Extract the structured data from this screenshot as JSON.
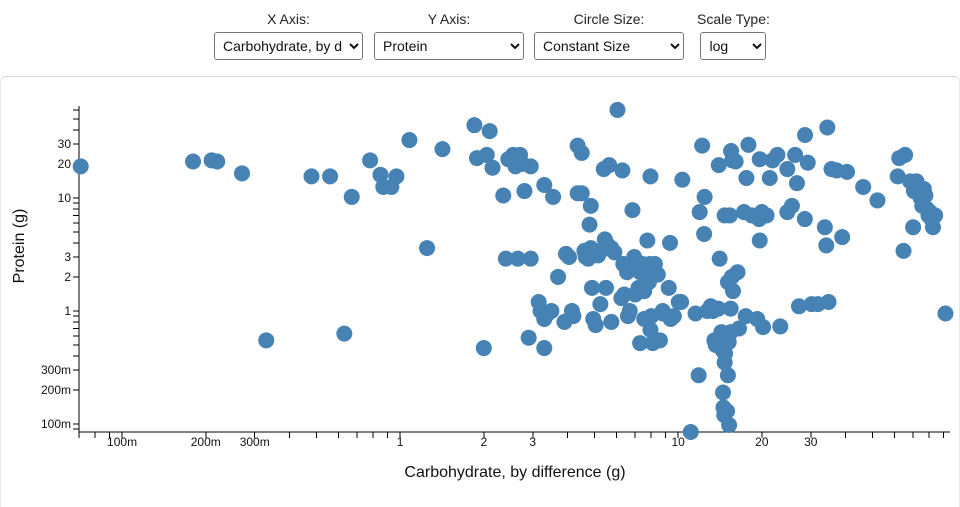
{
  "controls": {
    "x_axis": {
      "label": "X Axis:",
      "selected": "Carbohydrate, by difference"
    },
    "y_axis": {
      "label": "Y Axis:",
      "selected": "Protein"
    },
    "circle_size": {
      "label": "Circle Size:",
      "selected": "Constant Size"
    },
    "scale_type": {
      "label": "Scale Type:",
      "selected": "log"
    }
  },
  "chart_data": {
    "type": "scatter",
    "title": "",
    "xlabel": "Carbohydrate, by difference (g)",
    "ylabel": "Protein (g)",
    "xscale": "log",
    "yscale": "log",
    "xlim": [
      0.07,
      95
    ],
    "ylim": [
      0.085,
      65
    ],
    "x_tick_labels": [
      {
        "value": 0.1,
        "label": "100m"
      },
      {
        "value": 0.2,
        "label": "200m"
      },
      {
        "value": 0.3,
        "label": "300m"
      },
      {
        "value": 1,
        "label": "1"
      },
      {
        "value": 2,
        "label": "2"
      },
      {
        "value": 3,
        "label": "3"
      },
      {
        "value": 10,
        "label": "10"
      },
      {
        "value": 20,
        "label": "20"
      },
      {
        "value": 30,
        "label": "30"
      }
    ],
    "y_tick_labels": [
      {
        "value": 0.1,
        "label": "100m"
      },
      {
        "value": 0.2,
        "label": "200m"
      },
      {
        "value": 0.3,
        "label": "300m"
      },
      {
        "value": 1,
        "label": "1"
      },
      {
        "value": 2,
        "label": "2"
      },
      {
        "value": 3,
        "label": "3"
      },
      {
        "value": 10,
        "label": "10"
      },
      {
        "value": 20,
        "label": "20"
      },
      {
        "value": 30,
        "label": "30"
      }
    ],
    "color": "#4682b4",
    "points": [
      [
        0.071,
        19
      ],
      [
        0.18,
        21
      ],
      [
        0.21,
        21.5
      ],
      [
        0.22,
        21
      ],
      [
        0.27,
        16.5
      ],
      [
        0.33,
        0.55
      ],
      [
        0.48,
        15.5
      ],
      [
        0.56,
        15.5
      ],
      [
        0.63,
        0.63
      ],
      [
        0.67,
        10.2
      ],
      [
        0.78,
        21.5
      ],
      [
        0.85,
        16
      ],
      [
        0.87,
        12.5
      ],
      [
        0.93,
        12.5
      ],
      [
        0.97,
        15.5
      ],
      [
        1.08,
        32.5
      ],
      [
        1.25,
        3.6
      ],
      [
        1.42,
        27
      ],
      [
        1.85,
        44
      ],
      [
        1.89,
        22.5
      ],
      [
        2.0,
        0.47
      ],
      [
        2.1,
        39
      ],
      [
        2.05,
        24
      ],
      [
        2.15,
        18.5
      ],
      [
        2.35,
        10.5
      ],
      [
        2.45,
        22
      ],
      [
        2.55,
        24
      ],
      [
        2.7,
        24
      ],
      [
        2.6,
        19
      ],
      [
        2.75,
        20
      ],
      [
        2.8,
        11.5
      ],
      [
        2.95,
        19
      ],
      [
        2.4,
        2.9
      ],
      [
        2.65,
        2.9
      ],
      [
        2.95,
        2.9
      ],
      [
        2.9,
        0.58
      ],
      [
        3.15,
        1.2
      ],
      [
        3.3,
        13
      ],
      [
        3.55,
        10.2
      ],
      [
        3.3,
        0.47
      ],
      [
        3.2,
        1.0
      ],
      [
        3.3,
        0.85
      ],
      [
        3.4,
        0.95
      ],
      [
        3.5,
        1.0
      ],
      [
        3.7,
        2.0
      ],
      [
        3.9,
        0.8
      ],
      [
        3.95,
        3.2
      ],
      [
        4.05,
        3.0
      ],
      [
        4.15,
        1.0
      ],
      [
        4.2,
        0.9
      ],
      [
        4.35,
        11
      ],
      [
        4.35,
        29
      ],
      [
        4.5,
        25
      ],
      [
        4.5,
        11
      ],
      [
        4.6,
        3.4
      ],
      [
        4.65,
        3.0
      ],
      [
        4.75,
        2.9
      ],
      [
        4.8,
        5.8
      ],
      [
        4.85,
        8.5
      ],
      [
        4.85,
        3.6
      ],
      [
        4.9,
        1.6
      ],
      [
        4.95,
        0.85
      ],
      [
        5.05,
        0.75
      ],
      [
        5.15,
        3.1
      ],
      [
        5.25,
        1.15
      ],
      [
        5.35,
        3.5
      ],
      [
        5.45,
        4.3
      ],
      [
        5.5,
        1.6
      ],
      [
        5.4,
        18
      ],
      [
        5.65,
        19.5
      ],
      [
        5.75,
        3.6
      ],
      [
        5.6,
        3.8
      ],
      [
        5.9,
        3.3
      ],
      [
        5.75,
        0.8
      ],
      [
        6.05,
        60
      ],
      [
        6.25,
        1.3
      ],
      [
        6.4,
        1.4
      ],
      [
        6.35,
        2.6
      ],
      [
        6.55,
        2.2
      ],
      [
        6.3,
        17.5
      ],
      [
        6.6,
        0.9
      ],
      [
        6.7,
        1.0
      ],
      [
        6.85,
        7.8
      ],
      [
        6.95,
        2.6
      ],
      [
        6.95,
        3.0
      ],
      [
        7.2,
        1.6
      ],
      [
        7.0,
        1.4
      ],
      [
        7.3,
        2.2
      ],
      [
        7.45,
        2.6
      ],
      [
        7.3,
        0.52
      ],
      [
        7.55,
        1.5
      ],
      [
        7.6,
        2.0
      ],
      [
        7.55,
        0.85
      ],
      [
        7.85,
        1.8
      ],
      [
        7.9,
        2.6
      ],
      [
        7.75,
        4.2
      ],
      [
        7.95,
        15.5
      ],
      [
        7.95,
        0.68
      ],
      [
        8.1,
        0.52
      ],
      [
        8.0,
        0.9
      ],
      [
        8.25,
        2.6
      ],
      [
        8.45,
        2.1
      ],
      [
        8.6,
        0.55
      ],
      [
        8.8,
        1.0
      ],
      [
        8.8,
        0.95
      ],
      [
        9.25,
        1.6
      ],
      [
        9.35,
        4.0
      ],
      [
        9.4,
        0.85
      ],
      [
        9.65,
        0.9
      ],
      [
        10.05,
        1.2
      ],
      [
        10.25,
        1.2
      ],
      [
        10.35,
        14.5
      ],
      [
        11.1,
        0.085
      ],
      [
        11.55,
        0.95
      ],
      [
        11.95,
        7.5
      ],
      [
        11.85,
        0.27
      ],
      [
        12.2,
        29
      ],
      [
        12.45,
        10.2
      ],
      [
        12.4,
        4.8
      ],
      [
        12.75,
        1.0
      ],
      [
        13.1,
        1.1
      ],
      [
        13.35,
        1.0
      ],
      [
        13.5,
        0.55
      ],
      [
        13.65,
        0.5
      ],
      [
        13.95,
        1.05
      ],
      [
        14.0,
        19.5
      ],
      [
        14.1,
        2.9
      ],
      [
        14.3,
        0.65
      ],
      [
        14.5,
        0.19
      ],
      [
        14.45,
        0.45
      ],
      [
        14.7,
        7.0
      ],
      [
        14.65,
        0.12
      ],
      [
        14.55,
        0.14
      ],
      [
        14.7,
        0.35
      ],
      [
        14.75,
        0.42
      ],
      [
        15.0,
        0.13
      ],
      [
        15.2,
        0.53
      ],
      [
        15.1,
        0.27
      ],
      [
        15.35,
        7.0
      ],
      [
        15.1,
        1.8
      ],
      [
        15.6,
        2.0
      ],
      [
        15.45,
        0.65
      ],
      [
        15.25,
        0.098
      ],
      [
        15.5,
        26
      ],
      [
        15.65,
        21.5
      ],
      [
        15.45,
        1.05
      ],
      [
        15.75,
        1.5
      ],
      [
        16.1,
        21
      ],
      [
        16.35,
        2.2
      ],
      [
        16.55,
        0.7
      ],
      [
        17.25,
        7.5
      ],
      [
        17.6,
        15
      ],
      [
        17.9,
        29.5
      ],
      [
        17.5,
        0.9
      ],
      [
        18.4,
        7.0
      ],
      [
        19.25,
        0.85
      ],
      [
        19.65,
        22
      ],
      [
        19.55,
        6.5
      ],
      [
        19.65,
        4.2
      ],
      [
        20.0,
        7.5
      ],
      [
        20.8,
        7.0
      ],
      [
        20.2,
        0.72
      ],
      [
        21.35,
        15
      ],
      [
        21.85,
        21.5
      ],
      [
        22.75,
        24
      ],
      [
        23.3,
        0.73
      ],
      [
        24.7,
        7.5
      ],
      [
        25.65,
        8.5
      ],
      [
        24.7,
        18
      ],
      [
        26.75,
        13.5
      ],
      [
        26.35,
        24
      ],
      [
        27.2,
        1.1
      ],
      [
        28.55,
        6.5
      ],
      [
        29.25,
        20.5
      ],
      [
        28.6,
        36
      ],
      [
        30.2,
        1.15
      ],
      [
        31.8,
        1.15
      ],
      [
        33.7,
        5.5
      ],
      [
        34.1,
        3.8
      ],
      [
        34.75,
        1.2
      ],
      [
        34.4,
        42
      ],
      [
        35.6,
        18
      ],
      [
        37.15,
        17.5
      ],
      [
        38.9,
        4.5
      ],
      [
        40.5,
        17
      ],
      [
        46.3,
        12.5
      ],
      [
        52.1,
        9.5
      ],
      [
        61.6,
        15.5
      ],
      [
        62.4,
        22.5
      ],
      [
        64.65,
        3.4
      ],
      [
        65.5,
        24
      ],
      [
        68.3,
        14
      ],
      [
        70.5,
        11.5
      ],
      [
        70.0,
        5.5
      ],
      [
        71.0,
        13
      ],
      [
        72.0,
        14
      ],
      [
        73.5,
        12
      ],
      [
        74.5,
        10
      ],
      [
        75.5,
        8.5
      ],
      [
        76.5,
        12
      ],
      [
        77.5,
        10.5
      ],
      [
        78.5,
        8
      ],
      [
        79.5,
        7
      ],
      [
        80.5,
        7.5
      ],
      [
        81.5,
        6.5
      ],
      [
        82.5,
        5.5
      ],
      [
        84.0,
        7.0
      ],
      [
        91.5,
        0.95
      ]
    ]
  }
}
